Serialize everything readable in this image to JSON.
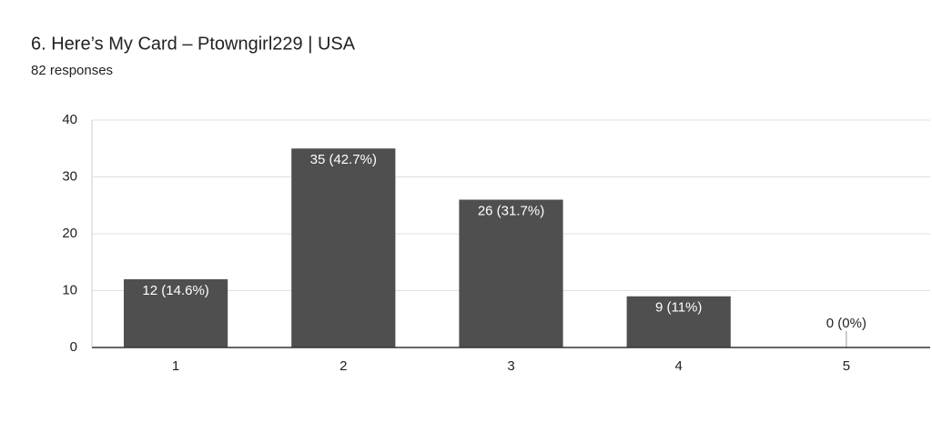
{
  "chart_data": {
    "type": "bar",
    "title": "6. Here’s My Card – Ptowngirl229 | USA",
    "subtitle": "82 responses",
    "categories": [
      "1",
      "2",
      "3",
      "4",
      "5"
    ],
    "values": [
      12,
      35,
      26,
      9,
      0
    ],
    "value_labels": [
      "12 (14.6%)",
      "35 (42.7%)",
      "26 (31.7%)",
      "9 (11%)",
      "0 (0%)"
    ],
    "color": "#4f4f4f",
    "ylim": [
      0,
      40
    ],
    "yticks": [
      0,
      10,
      20,
      30,
      40
    ],
    "grid": true
  }
}
